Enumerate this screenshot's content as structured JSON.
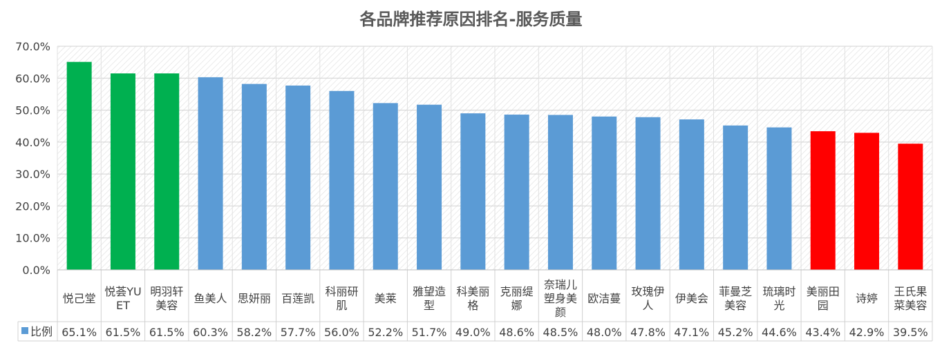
{
  "chart_data": {
    "type": "bar",
    "title": "各品牌推荐原因排名-服务质量",
    "xlabel": "",
    "ylabel": "",
    "ylim": [
      0,
      70
    ],
    "yticks": [
      "0.0%",
      "10.0%",
      "20.0%",
      "30.0%",
      "40.0%",
      "50.0%",
      "60.0%",
      "70.0%"
    ],
    "grid": true,
    "legend": "bottom-left (data table)",
    "series_name": "比例",
    "categories": [
      [
        "悦己堂"
      ],
      [
        "悦荟YU",
        "ET"
      ],
      [
        "明羽轩",
        "美容"
      ],
      [
        "鱼美人"
      ],
      [
        "思妍丽"
      ],
      [
        "百莲凯"
      ],
      [
        "科丽研",
        "肌"
      ],
      [
        "美莱"
      ],
      [
        "雅望造",
        "型"
      ],
      [
        "科美丽",
        "格"
      ],
      [
        "克丽缇",
        "娜"
      ],
      [
        "奈瑞儿",
        "塑身美",
        "颜"
      ],
      [
        "欧洁蔓"
      ],
      [
        "玫瑰伊",
        "人"
      ],
      [
        "伊美会"
      ],
      [
        "菲曼芝",
        "美容"
      ],
      [
        "琉璃时",
        "光"
      ],
      [
        "美丽田",
        "园"
      ],
      [
        "诗婷"
      ],
      [
        "王氏果",
        "菜美容"
      ]
    ],
    "values": [
      65.1,
      61.5,
      61.5,
      60.3,
      58.2,
      57.7,
      56.0,
      52.2,
      51.7,
      49.0,
      48.6,
      48.5,
      48.0,
      47.8,
      47.1,
      45.2,
      44.6,
      43.4,
      42.9,
      39.5
    ],
    "value_labels": [
      "65.1%",
      "61.5%",
      "61.5%",
      "60.3%",
      "58.2%",
      "57.7%",
      "56.0%",
      "52.2%",
      "51.7%",
      "49.0%",
      "48.6%",
      "48.5%",
      "48.0%",
      "47.8%",
      "47.1%",
      "45.2%",
      "44.6%",
      "43.4%",
      "42.9%",
      "39.5%"
    ],
    "bar_colors": [
      "#00B050",
      "#00B050",
      "#00B050",
      "#5B9BD5",
      "#5B9BD5",
      "#5B9BD5",
      "#5B9BD5",
      "#5B9BD5",
      "#5B9BD5",
      "#5B9BD5",
      "#5B9BD5",
      "#5B9BD5",
      "#5B9BD5",
      "#5B9BD5",
      "#5B9BD5",
      "#5B9BD5",
      "#5B9BD5",
      "#FF0000",
      "#FF0000",
      "#FF0000"
    ],
    "legend_color": "#5B9BD5"
  }
}
